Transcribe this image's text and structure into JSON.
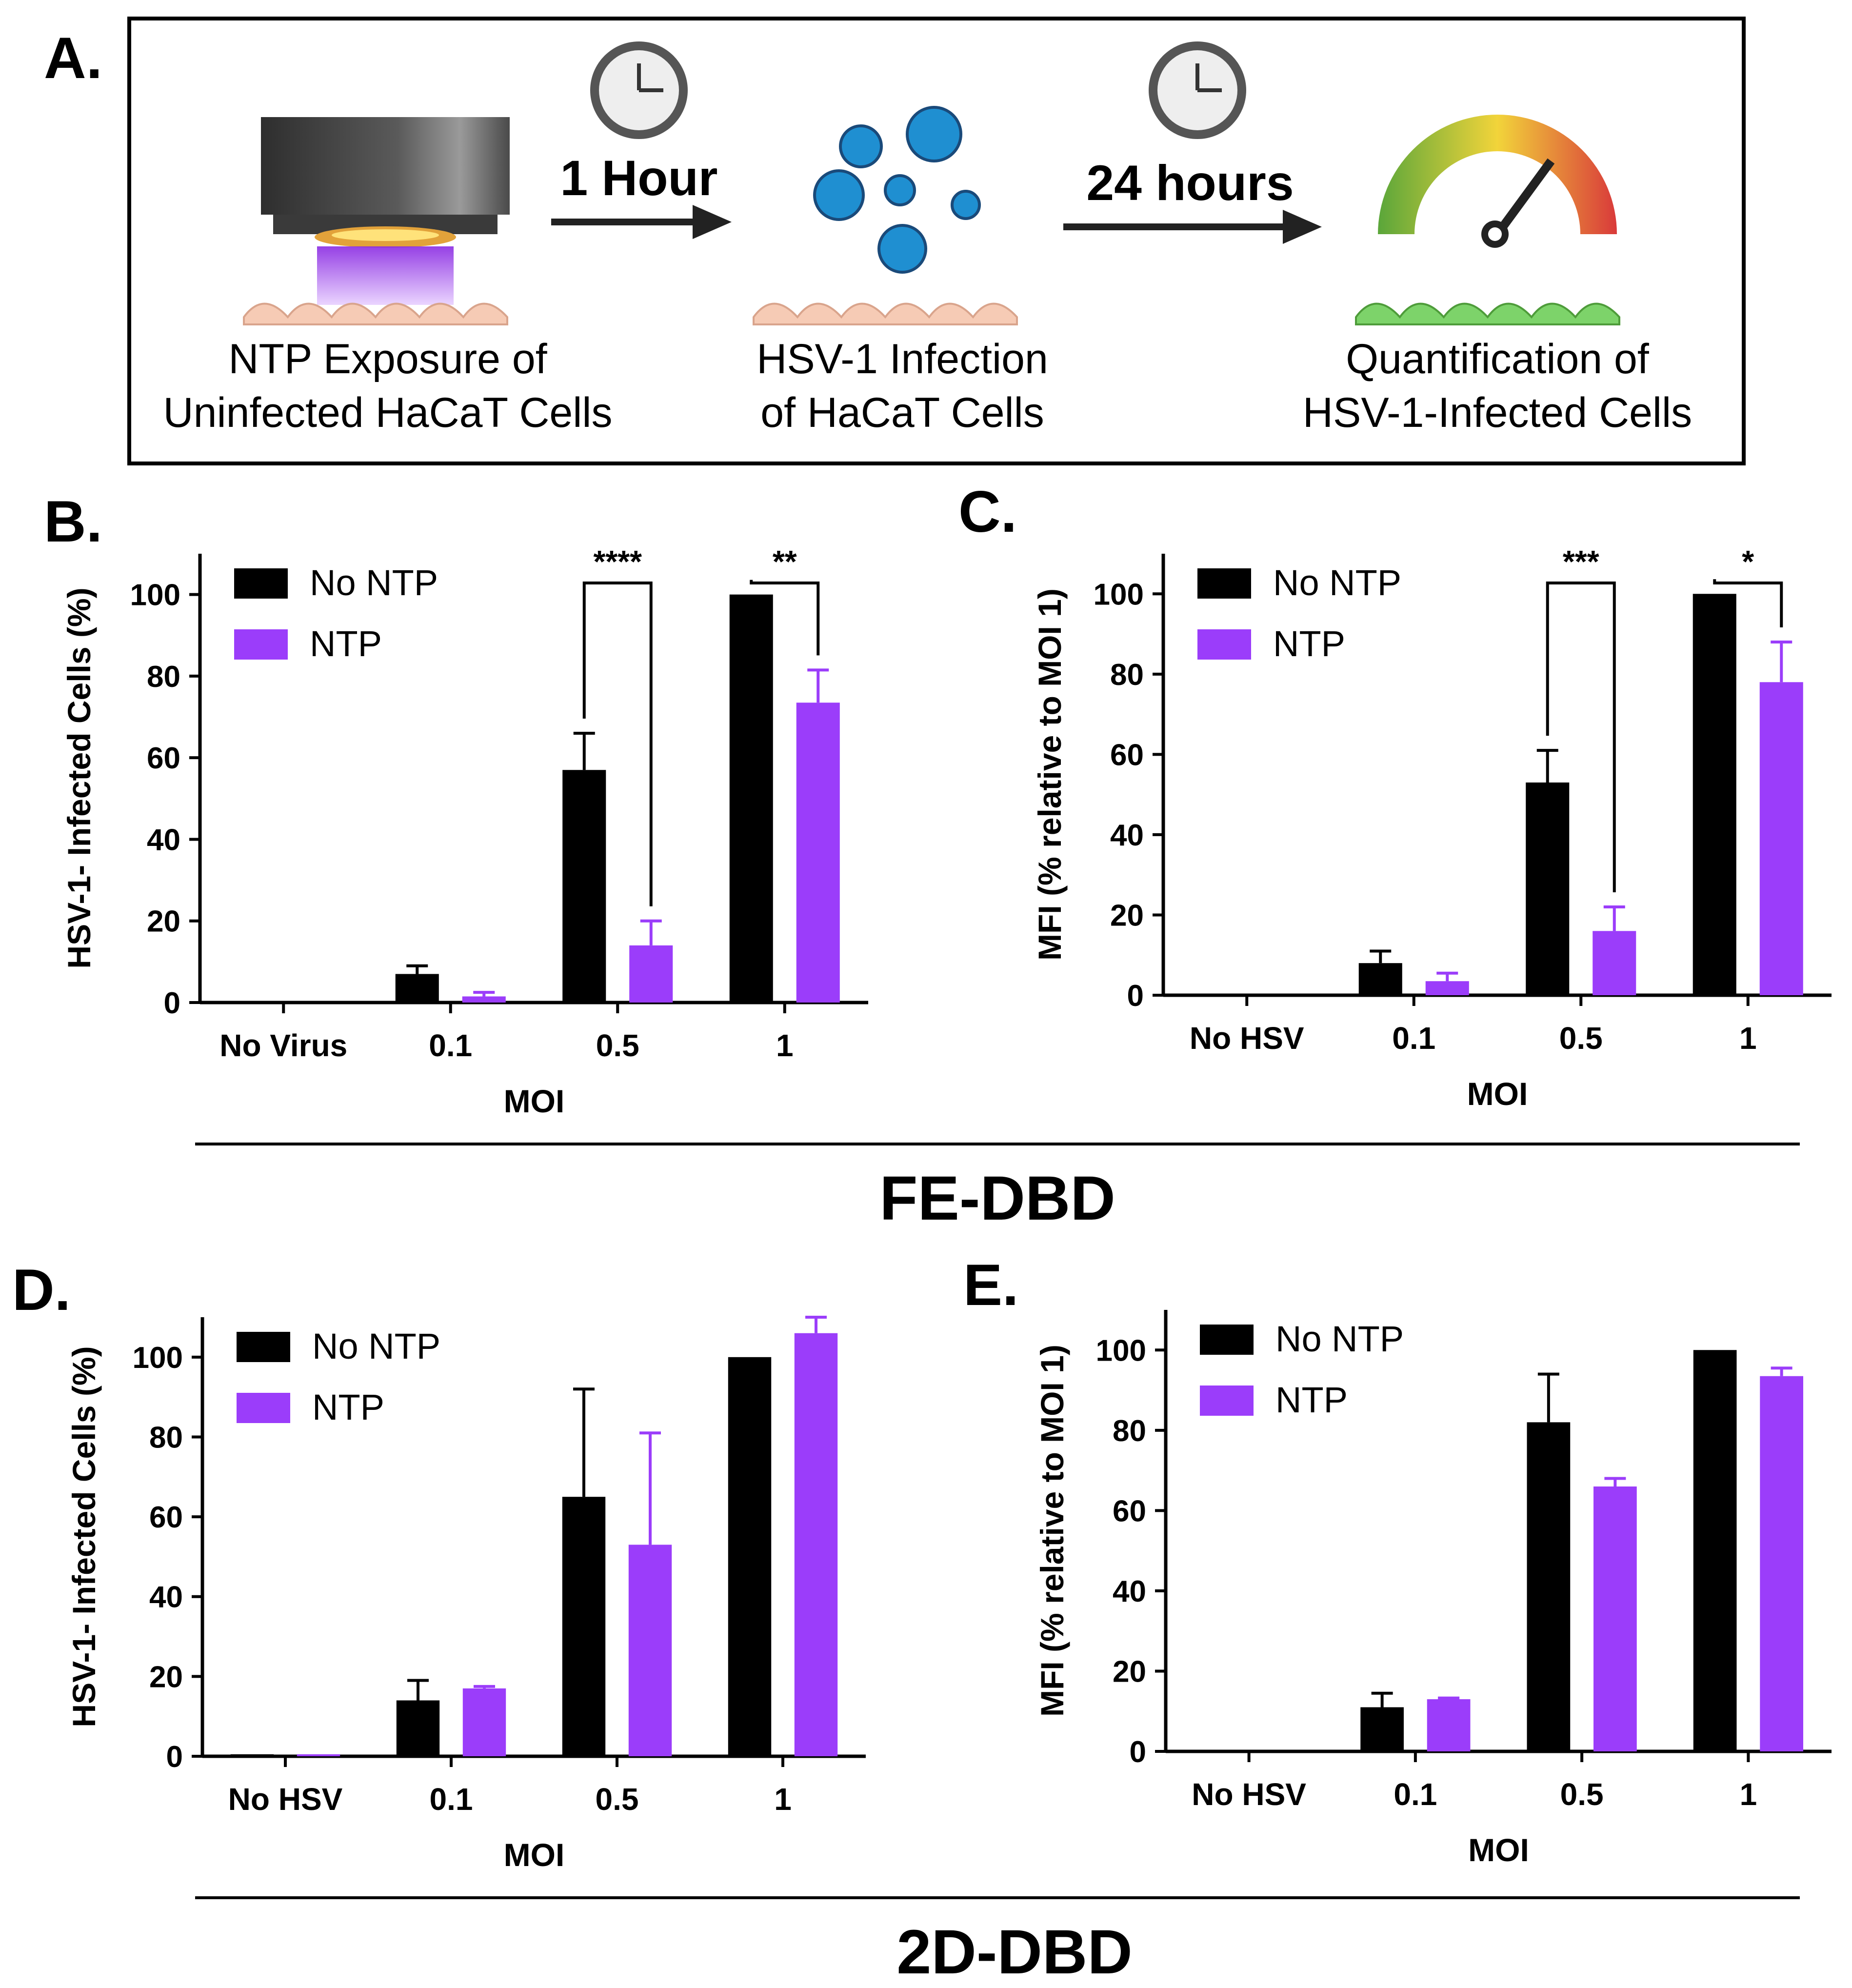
{
  "panel_a": {
    "label": "A.",
    "steps": [
      {
        "line1": "NTP Exposure of",
        "line2": "Uninfected HaCaT Cells"
      },
      {
        "line1": "HSV-1 Infection",
        "line2": "of HaCaT Cells"
      },
      {
        "line1": "Quantification of",
        "line2": "HSV-1-Infected Cells"
      }
    ],
    "times": [
      "1 Hour",
      "24 hours"
    ],
    "icons": [
      "clock-icon",
      "plasma-device-icon",
      "virus-icon",
      "gauge-icon",
      "cell-icon"
    ]
  },
  "group_labels": {
    "top": "FE-DBD",
    "bottom": "2D-DBD"
  },
  "colors": {
    "no_ntp": "#000000",
    "ntp": "#9b3dfa"
  },
  "chart_data": [
    {
      "panel": "B.",
      "type": "bar",
      "categories": [
        "No Virus",
        "0.1",
        "0.5",
        "1"
      ],
      "series": [
        {
          "name": "No NTP",
          "values": [
            0,
            7,
            57,
            100
          ],
          "errors": [
            0,
            2,
            9,
            0
          ]
        },
        {
          "name": "NTP",
          "values": [
            0,
            1.5,
            14,
            73.5
          ],
          "errors": [
            0,
            1,
            6,
            8
          ]
        }
      ],
      "xlabel": "MOI",
      "ylabel": "HSV-1- Infected Cells (%)",
      "ylim": [
        0,
        110
      ],
      "yticks": [
        0,
        20,
        40,
        60,
        80,
        100
      ],
      "legend": "top-left",
      "significance": [
        {
          "category": "0.5",
          "label": "****"
        },
        {
          "category": "1",
          "label": "**"
        }
      ]
    },
    {
      "panel": "C.",
      "type": "bar",
      "categories": [
        "No HSV",
        "0.1",
        "0.5",
        "1"
      ],
      "series": [
        {
          "name": "No NTP",
          "values": [
            0,
            8,
            53,
            100
          ],
          "errors": [
            0,
            3,
            8,
            0
          ]
        },
        {
          "name": "NTP",
          "values": [
            0,
            3.5,
            16,
            78
          ],
          "errors": [
            0,
            2,
            6,
            10
          ]
        }
      ],
      "xlabel": "MOI",
      "ylabel": "MFI (% relative to MOI 1)",
      "ylim": [
        0,
        110
      ],
      "yticks": [
        0,
        20,
        40,
        60,
        80,
        100
      ],
      "legend": "top-left",
      "significance": [
        {
          "category": "0.5",
          "label": "***"
        },
        {
          "category": "1",
          "label": "*"
        }
      ]
    },
    {
      "panel": "D.",
      "type": "bar",
      "categories": [
        "No HSV",
        "0.1",
        "0.5",
        "1"
      ],
      "series": [
        {
          "name": "No NTP",
          "values": [
            0.5,
            14,
            65,
            100
          ],
          "errors": [
            0,
            5,
            27,
            0
          ]
        },
        {
          "name": "NTP",
          "values": [
            0.5,
            17,
            53,
            106
          ],
          "errors": [
            0,
            0.5,
            28,
            4
          ]
        }
      ],
      "xlabel": "MOI",
      "ylabel": "HSV-1- Infected Cells (%)",
      "ylim": [
        0,
        110
      ],
      "yticks": [
        0,
        20,
        40,
        60,
        80,
        100
      ],
      "legend": "top-left",
      "significance": []
    },
    {
      "panel": "E.",
      "type": "bar",
      "categories": [
        "No HSV",
        "0.1",
        "0.5",
        "1"
      ],
      "series": [
        {
          "name": "No NTP",
          "values": [
            0,
            11,
            82,
            100
          ],
          "errors": [
            0,
            3.5,
            12,
            0
          ]
        },
        {
          "name": "NTP",
          "values": [
            0,
            13,
            66,
            93.5
          ],
          "errors": [
            0,
            0.3,
            2,
            2
          ]
        }
      ],
      "xlabel": "MOI",
      "ylabel": "MFI (% relative to MOI 1)",
      "ylim": [
        0,
        110
      ],
      "yticks": [
        0,
        20,
        40,
        60,
        80,
        100
      ],
      "legend": "top-left",
      "significance": []
    }
  ]
}
